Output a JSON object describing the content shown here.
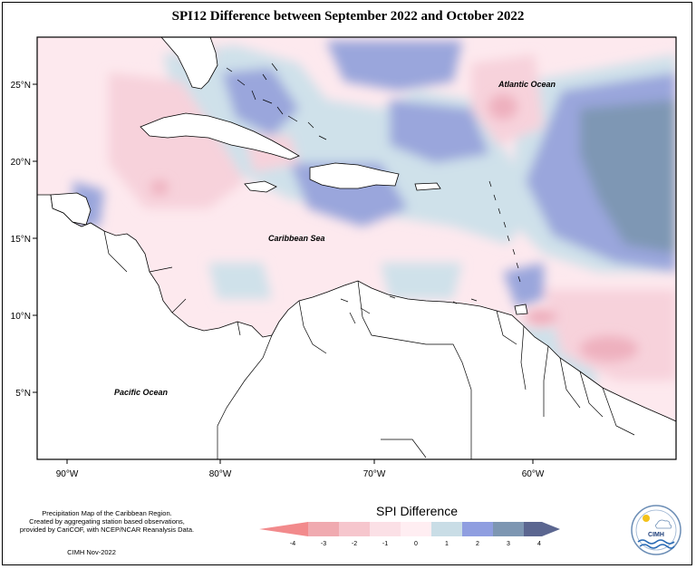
{
  "title": "SPI12 Difference between September 2022 and October 2022",
  "map": {
    "lat_ticks": [
      "25°N",
      "20°N",
      "15°N",
      "10°N",
      "5°N"
    ],
    "lon_ticks": [
      "90°W",
      "80°W",
      "70°W",
      "60°W"
    ],
    "labels": {
      "atlantic": "Atlantic Ocean",
      "caribbean": "Caribbean Sea",
      "pacific": "Pacific Ocean"
    },
    "colors": {
      "ocean_neutral": "#fde9ee",
      "neg_light": "#f7d2db",
      "neg_mid": "#eeb0be",
      "neg_strong": "#e88c96",
      "pos_light": "#cfe1ea",
      "pos_mid": "#9aa6dc",
      "pos_strong": "#7e97b4",
      "land": "#ffffff"
    }
  },
  "footer": {
    "line1": "Precipitation Map of the Caribbean Region.",
    "line2": "Created by aggregating station based observations,",
    "line3": "provided by CariCOF, with NCEP/NCAR Reanalysis Data.",
    "credit": "CIMH Nov-2022"
  },
  "legend": {
    "title": "SPI Difference",
    "ticks": [
      "-4",
      "-3",
      "-2",
      "-1",
      "0",
      "1",
      "2",
      "3",
      "4"
    ],
    "colors": [
      "#f28a8c",
      "#f0aab0",
      "#f6c6cd",
      "#fbe0e6",
      "#ffeef2",
      "#c9dde6",
      "#8f9ee0",
      "#7d96b2",
      "#5b6690"
    ]
  },
  "logo": {
    "text": "CIMH"
  }
}
